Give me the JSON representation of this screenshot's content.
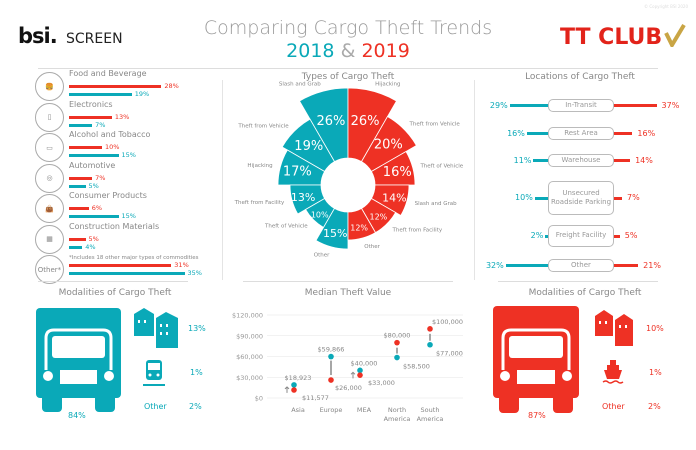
{
  "header": {
    "copyright": "© Copyright BSI 2020",
    "logo_left": "bsi.",
    "logo_left_product": "SCREEN",
    "title": "Comparing Cargo Theft Trends",
    "year_2018": "2018",
    "ampersand": "&",
    "year_2019": "2019",
    "logo_right": "TT CLUB"
  },
  "colors": {
    "y2018": "#0aa9b8",
    "y2019": "#ee3124"
  },
  "commodities": {
    "items": [
      {
        "label": "Food and Beverage",
        "icon": "food-icon",
        "v2019": 28,
        "v2018": 19
      },
      {
        "label": "Electronics",
        "icon": "phone-icon",
        "v2019": 13,
        "v2018": 7
      },
      {
        "label": "Alcohol and Tobacco",
        "icon": "cigarette-icon",
        "v2019": 10,
        "v2018": 15
      },
      {
        "label": "Automotive",
        "icon": "tire-icon",
        "v2019": 7,
        "v2018": 5
      },
      {
        "label": "Consumer Products",
        "icon": "handbag-icon",
        "v2019": 6,
        "v2018": 15
      },
      {
        "label": "Construction Materials",
        "icon": "bricks-icon",
        "v2019": 5,
        "v2018": 4
      }
    ],
    "other": {
      "icon_label": "Other*",
      "note": "*Includes 18 other major types of commodities",
      "v2019": 31,
      "v2018": 35
    }
  },
  "chart_data": [
    {
      "type": "polar-bar",
      "title": "Types of Cargo Theft",
      "series": [
        {
          "name": "2018",
          "categories": [
            "Slash and Grab",
            "Theft from Vehicle",
            "Hijacking",
            "Theft from Facility",
            "Theft of Vehicle",
            "Other"
          ],
          "values": [
            26,
            19,
            17,
            13,
            10,
            15
          ]
        },
        {
          "name": "2019",
          "categories": [
            "Hijacking",
            "Theft from Vehicle",
            "Theft of Vehicle",
            "Slash and Grab",
            "Theft from Facility",
            "Other"
          ],
          "values": [
            26,
            20,
            16,
            14,
            12,
            12
          ]
        }
      ]
    },
    {
      "type": "dot-plot",
      "title": "Median Theft Value",
      "categories": [
        "Asia",
        "Europe",
        "MEA",
        "North America",
        "South America"
      ],
      "series": [
        {
          "name": "2018",
          "values": [
            18923,
            59866,
            40000,
            58500,
            77000
          ],
          "labels": [
            "$18,923",
            "$59,866",
            "$40,000",
            "$58,500",
            "$77,000"
          ]
        },
        {
          "name": "2019",
          "values": [
            11577,
            26000,
            33000,
            80000,
            100000
          ],
          "labels": [
            "$11,577",
            "$26,000",
            "$33,000",
            "$80,000",
            "$100,000"
          ]
        }
      ],
      "ylim": [
        0,
        120000
      ],
      "yticks": [
        "$0",
        "$30,000",
        "$60,000",
        "$90,000",
        "$120,000"
      ],
      "grid": true
    }
  ],
  "locations": {
    "title": "Locations of Cargo Theft",
    "items": [
      {
        "label": "In-Transit",
        "v2018": 29,
        "v2019": 37
      },
      {
        "label": "Rest Area",
        "v2018": 16,
        "v2019": 16
      },
      {
        "label": "Warehouse",
        "v2018": 11,
        "v2019": 14
      },
      {
        "label": "Unsecured Roadside Parking",
        "v2018": 10,
        "v2019": 7
      },
      {
        "label": "Freight Facility",
        "v2018": 2,
        "v2019": 5
      },
      {
        "label": "Other",
        "v2018": 32,
        "v2019": 21
      }
    ]
  },
  "modalities_2018": {
    "title": "Modalities of Cargo Theft",
    "truck": "84%",
    "warehouse": "13%",
    "rail": "1%",
    "other_label": "Other",
    "other": "2%"
  },
  "modalities_2019": {
    "title": "Modalities of Cargo Theft",
    "truck": "87%",
    "warehouse": "10%",
    "ship": "1%",
    "other_label": "Other",
    "other": "2%"
  }
}
